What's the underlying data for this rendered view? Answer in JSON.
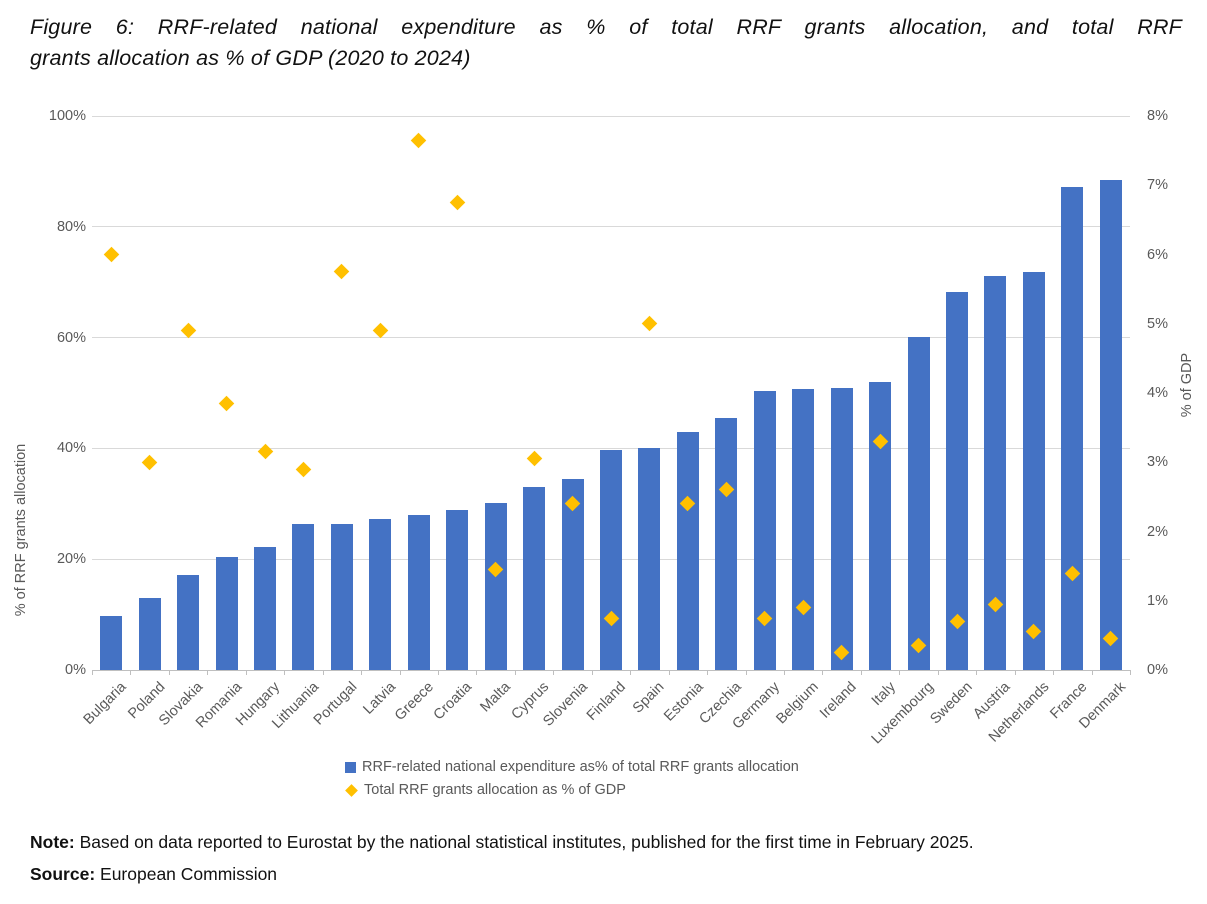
{
  "figure": {
    "title_line1": "Figure 6: RRF-related national expenditure as % of total RRF grants allocation, and total RRF",
    "title_line2": "grants allocation as % of GDP (2020 to 2024)",
    "note_label": "Note:",
    "note_text": " Based on data reported to Eurostat by the national statistical institutes, published for the first time in February 2025.",
    "source_label": "Source:",
    "source_text": " European Commission"
  },
  "colors": {
    "bar": "#4472C4",
    "marker": "#FFC000",
    "gridline": "#D9D9D9",
    "axis_text": "#595959"
  },
  "chart_data": {
    "type": "bar",
    "subtype": "combo-bar-scatter",
    "grid": true,
    "legend_position": "bottom",
    "categories": [
      "Bulgaria",
      "Poland",
      "Slovakia",
      "Romania",
      "Hungary",
      "Lithuania",
      "Portugal",
      "Latvia",
      "Greece",
      "Croatia",
      "Malta",
      "Cyprus",
      "Slovenia",
      "Finland",
      "Spain",
      "Estonia",
      "Czechia",
      "Germany",
      "Belgium",
      "Ireland",
      "Italy",
      "Luxembourg",
      "Sweden",
      "Austria",
      "Netherlands",
      "France",
      "Denmark"
    ],
    "series": [
      {
        "name": "RRF-related national expenditure as% of total RRF grants allocation",
        "type": "bar",
        "axis": "left",
        "color": "#4472C4",
        "values": [
          9.7,
          13.0,
          17.1,
          20.4,
          22.2,
          26.3,
          26.3,
          27.2,
          27.9,
          28.8,
          30.1,
          33.0,
          34.5,
          39.7,
          40.0,
          43.0,
          45.4,
          50.4,
          50.7,
          50.9,
          51.9,
          60.2,
          68.2,
          71.1,
          71.9,
          87.2,
          88.5
        ]
      },
      {
        "name": "Total RRF grants allocation as % of GDP",
        "type": "scatter",
        "marker": "diamond",
        "axis": "right",
        "color": "#FFC000",
        "values": [
          6.0,
          3.0,
          4.9,
          3.85,
          3.15,
          2.9,
          5.75,
          4.9,
          7.65,
          6.75,
          1.45,
          3.05,
          2.4,
          0.75,
          5.0,
          2.4,
          2.6,
          0.75,
          0.9,
          0.25,
          3.3,
          0.35,
          0.7,
          0.95,
          0.55,
          1.4,
          0.45
        ]
      }
    ],
    "left_axis": {
      "title": "% of RRF grants allocation",
      "min": 0,
      "max": 100,
      "tick_labels": [
        "0%",
        "20%",
        "40%",
        "60%",
        "80%",
        "100%"
      ]
    },
    "right_axis": {
      "title": "% of GDP",
      "min": 0,
      "max": 8,
      "tick_labels": [
        "0%",
        "1%",
        "2%",
        "3%",
        "4%",
        "5%",
        "6%",
        "7%",
        "8%"
      ]
    }
  }
}
